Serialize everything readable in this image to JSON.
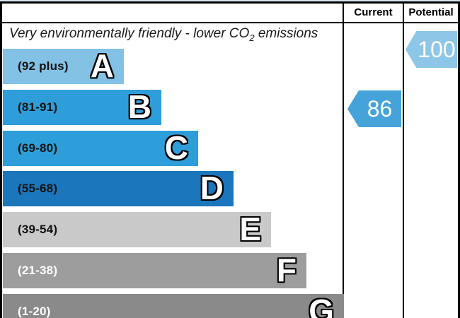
{
  "header": {
    "current_label": "Current",
    "potential_label": "Potential"
  },
  "title": {
    "prefix": "Very environmentally friendly - lower CO",
    "subscript": "2",
    "suffix": " emissions"
  },
  "chart_data": {
    "type": "bar",
    "kind": "epc-environmental-co2-rating",
    "title": "Very environmentally friendly - lower CO2 emissions",
    "bands": [
      {
        "letter": "A",
        "range": "(92 plus)",
        "color": "#84c2e5"
      },
      {
        "letter": "B",
        "range": "(81-91)",
        "color": "#2d9eda"
      },
      {
        "letter": "C",
        "range": "(69-80)",
        "color": "#2d9eda"
      },
      {
        "letter": "D",
        "range": "(55-68)",
        "color": "#1b76bc"
      },
      {
        "letter": "E",
        "range": "(39-54)",
        "color": "#c9c9c9"
      },
      {
        "letter": "F",
        "range": "(21-38)",
        "color": "#9d9d9d"
      },
      {
        "letter": "G",
        "range": "(1-20)",
        "color": "#8a8a8a"
      }
    ],
    "current": {
      "value": 86,
      "band": "B",
      "color": "#45a3da"
    },
    "potential": {
      "value": 100,
      "band": "A",
      "color": "#8ec6e8"
    }
  }
}
